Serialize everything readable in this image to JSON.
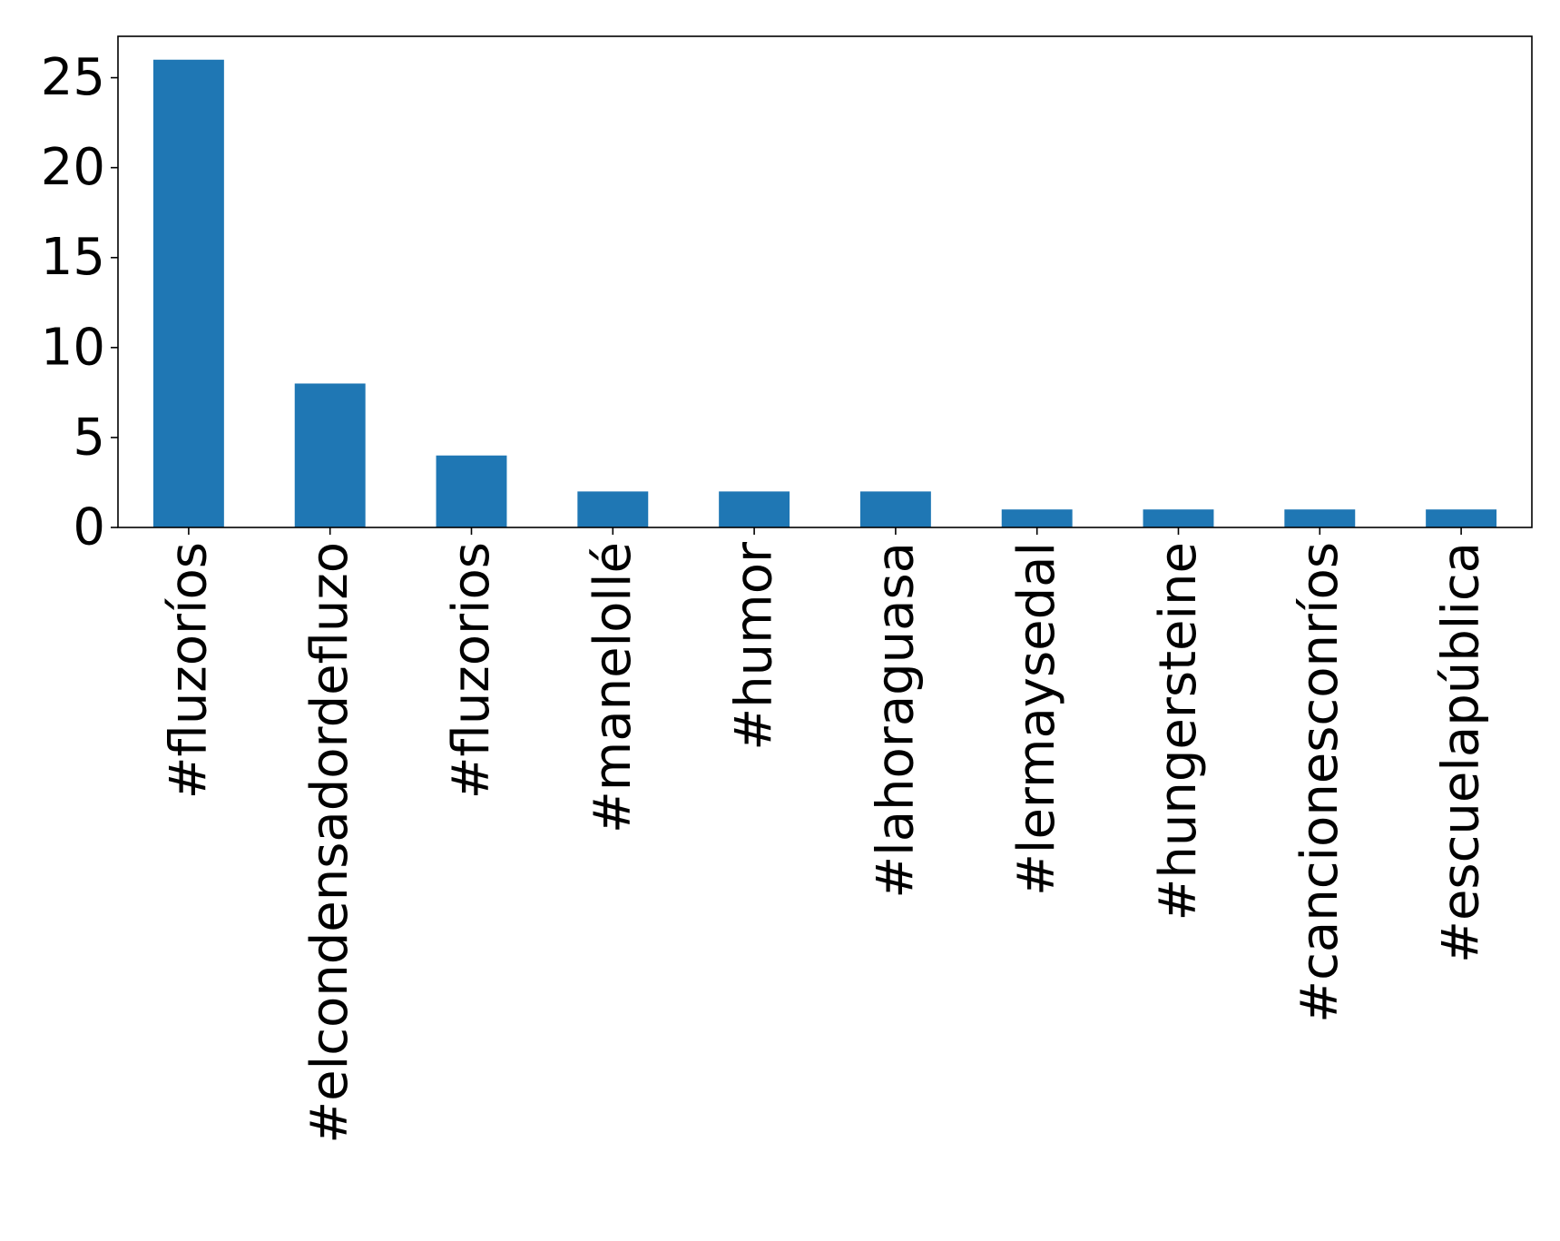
{
  "chart_data": {
    "type": "bar",
    "title": "",
    "xlabel": "",
    "ylabel": "",
    "categories": [
      "#fluzoríos",
      "#elcondensadordefluzo",
      "#fluzorios",
      "#manelollé",
      "#humor",
      "#lahoraguasa",
      "#lermaysedal",
      "#hungersteine",
      "#cancionesconríos",
      "#escuelapública"
    ],
    "values": [
      26,
      8,
      4,
      2,
      2,
      2,
      1,
      1,
      1,
      1
    ],
    "ylim": [
      0,
      27.3
    ],
    "yticks": [
      0,
      5,
      10,
      15,
      20,
      25
    ],
    "grid": false,
    "legend": "none",
    "bar_color": "#1f77b4"
  }
}
